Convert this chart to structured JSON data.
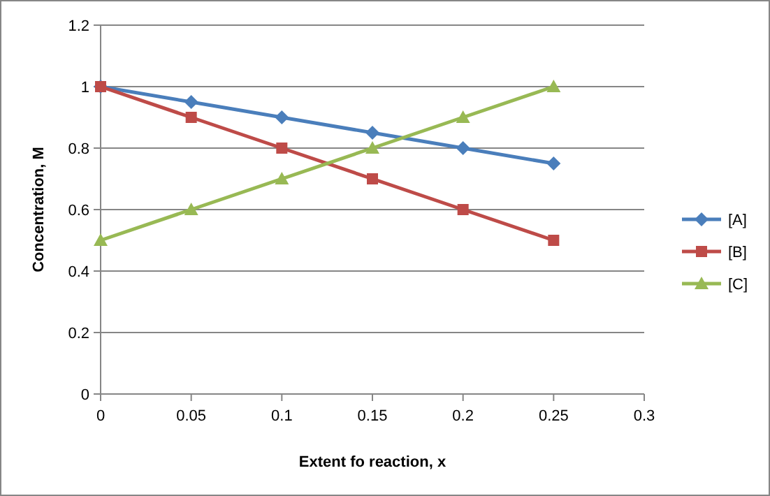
{
  "chart_data": {
    "type": "line",
    "xlabel": "Extent fo reaction, x",
    "ylabel": "Concentration, M",
    "x": [
      0,
      0.05,
      0.1,
      0.15,
      0.2,
      0.25
    ],
    "series": [
      {
        "name": "[A]",
        "color": "#4a7ebb",
        "marker": "diamond",
        "values": [
          1,
          0.95,
          0.9,
          0.85,
          0.8,
          0.75
        ]
      },
      {
        "name": "[B]",
        "color": "#be4b48",
        "marker": "square",
        "values": [
          1,
          0.9,
          0.8,
          0.7,
          0.6,
          0.5
        ]
      },
      {
        "name": "[C]",
        "color": "#98b954",
        "marker": "triangle",
        "values": [
          0.5,
          0.6,
          0.7,
          0.8,
          0.9,
          1
        ]
      }
    ],
    "xlim": [
      0,
      0.3
    ],
    "xticks": [
      0,
      0.05,
      0.1,
      0.15,
      0.2,
      0.25,
      0.3
    ],
    "ylim": [
      0,
      1.2
    ],
    "yticks": [
      0,
      0.2,
      0.4,
      0.6,
      0.8,
      1,
      1.2
    ],
    "grid": "y",
    "legend": "right",
    "line_style": "solid"
  }
}
